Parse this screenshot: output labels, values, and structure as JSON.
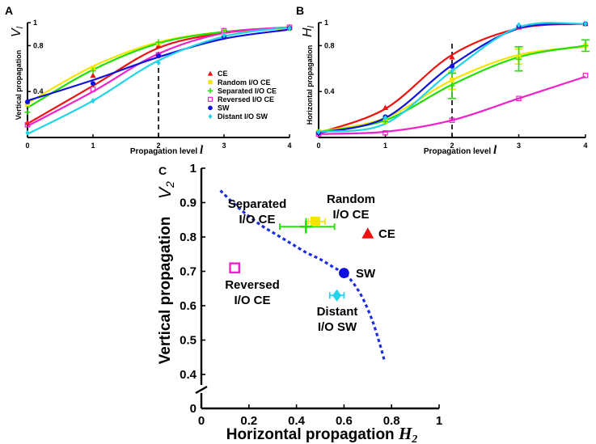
{
  "colors": {
    "CE": "#ee1111",
    "Random I/O CE": "#f2e600",
    "Separated I/O CE": "#22dd00",
    "Reversed I/O CE": "#ee22cc",
    "SW": "#1111dd",
    "Distant I/O SW": "#22d4e8",
    "axis": "#000000",
    "guide": "#000000",
    "trend": "#1a2ee0"
  },
  "chart_data": [
    {
      "panel": "A",
      "type": "line",
      "xlabel": "Propagation level",
      "xvar": "l",
      "ylabel": "Vertical propagation",
      "yvar": "V",
      "ysub": "l",
      "xlim": [
        0,
        4
      ],
      "ylim": [
        0,
        1
      ],
      "xticks": [
        "0",
        "1",
        "2",
        "3",
        "4"
      ],
      "yticks": [
        "0.4",
        "0.8",
        "1"
      ],
      "ytick_values": [
        0.4,
        0.8,
        1
      ],
      "guide_x": 2,
      "x": [
        0,
        1,
        2,
        3,
        4
      ],
      "legend_position": "right-middle",
      "series": [
        {
          "name": "CE",
          "marker": "triangle",
          "values": [
            0.13,
            0.54,
            0.8,
            0.92,
            0.96
          ],
          "curve": [
            0.12,
            0.45,
            0.78,
            0.91,
            0.96
          ]
        },
        {
          "name": "Random I/O CE",
          "marker": "square",
          "values": [
            0.29,
            0.6,
            0.82,
            0.92,
            0.95
          ],
          "curve": [
            0.3,
            0.62,
            0.83,
            0.92,
            0.95
          ]
        },
        {
          "name": "Separated I/O CE",
          "marker": "plus",
          "values": [
            0.22,
            0.58,
            0.83,
            0.93,
            0.96
          ],
          "curve": [
            0.26,
            0.59,
            0.82,
            0.92,
            0.96
          ]
        },
        {
          "name": "Reversed I/O CE",
          "marker": "open-square",
          "values": [
            0.11,
            0.42,
            0.72,
            0.93,
            0.96
          ],
          "curve": [
            0.1,
            0.4,
            0.73,
            0.91,
            0.96
          ]
        },
        {
          "name": "SW",
          "marker": "circle",
          "values": [
            0.31,
            0.47,
            0.71,
            0.88,
            0.95
          ],
          "curve": [
            0.32,
            0.5,
            0.7,
            0.86,
            0.94
          ]
        },
        {
          "name": "Distant I/O SW",
          "marker": "diamond",
          "values": [
            0.04,
            0.32,
            0.65,
            0.89,
            0.95
          ],
          "curve": [
            0.03,
            0.32,
            0.67,
            0.88,
            0.96
          ]
        }
      ]
    },
    {
      "panel": "B",
      "type": "line",
      "xlabel": "Propagation level",
      "xvar": "l",
      "ylabel": "Horizontal propagation",
      "yvar": "H",
      "ysub": "l",
      "xlim": [
        0,
        4
      ],
      "ylim": [
        0,
        1
      ],
      "xticks": [
        "0",
        "1",
        "2",
        "3",
        "4"
      ],
      "yticks": [
        "0.4",
        "0.8",
        "1"
      ],
      "ytick_values": [
        0.4,
        0.8,
        1
      ],
      "guide_x": 2,
      "x": [
        0,
        1,
        2,
        3,
        4
      ],
      "series": [
        {
          "name": "CE",
          "marker": "triangle",
          "values": [
            0.04,
            0.26,
            0.7,
            0.96,
            0.99
          ],
          "curve": [
            0.04,
            0.25,
            0.72,
            0.95,
            0.99
          ]
        },
        {
          "name": "Random I/O CE",
          "marker": "square",
          "values": [
            0.05,
            0.14,
            0.5,
            0.7,
            0.8
          ],
          "curve": [
            0.05,
            0.17,
            0.5,
            0.72,
            0.79
          ]
        },
        {
          "name": "Separated I/O CE",
          "marker": "plus",
          "values": [
            0.05,
            0.14,
            0.45,
            0.68,
            0.8
          ],
          "curve": [
            0.05,
            0.15,
            0.46,
            0.7,
            0.8
          ]
        },
        {
          "name": "Reversed I/O CE",
          "marker": "open-square",
          "values": [
            0.03,
            0.04,
            0.15,
            0.34,
            0.54
          ],
          "curve": [
            0.03,
            0.05,
            0.15,
            0.34,
            0.53
          ]
        },
        {
          "name": "SW",
          "marker": "circle",
          "values": [
            0.04,
            0.18,
            0.62,
            0.97,
            0.99
          ],
          "curve": [
            0.04,
            0.17,
            0.63,
            0.95,
            0.99
          ]
        },
        {
          "name": "Distant I/O SW",
          "marker": "diamond",
          "values": [
            0.05,
            0.17,
            0.58,
            0.98,
            0.99
          ],
          "curve": [
            0.05,
            0.12,
            0.58,
            0.96,
            0.99
          ]
        }
      ],
      "error_bars": [
        {
          "series": "Random I/O CE",
          "x": 2,
          "low": 0.42,
          "high": 0.58
        },
        {
          "series": "Random I/O CE",
          "x": 3,
          "low": 0.64,
          "high": 0.77
        },
        {
          "series": "Separated I/O CE",
          "x": 2,
          "low": 0.34,
          "high": 0.56
        },
        {
          "series": "Separated I/O CE",
          "x": 3,
          "low": 0.58,
          "high": 0.79
        },
        {
          "series": "Separated I/O CE",
          "x": 4,
          "low": 0.75,
          "high": 0.85
        }
      ]
    },
    {
      "panel": "C",
      "type": "scatter",
      "xlabel": "Horizontal propagation",
      "xvar": "H",
      "xsub": "2",
      "ylabel": "Vertical propagation",
      "yvar": "V",
      "ysub": "2",
      "xlim": [
        0,
        1
      ],
      "ylim": [
        0.4,
        1
      ],
      "axis_break": true,
      "xticks": [
        "0",
        "0.2",
        "0.4",
        "0.6",
        "0.8",
        "1"
      ],
      "xtick_values": [
        0,
        0.2,
        0.4,
        0.6,
        0.8,
        1
      ],
      "yticks": [
        "0.4",
        "0.5",
        "0.6",
        "0.7",
        "0.8",
        "0.9",
        "1"
      ],
      "ytick_values": [
        0.4,
        0.5,
        0.6,
        0.7,
        0.8,
        0.9,
        1
      ],
      "yzero_label": "0",
      "points": [
        {
          "name": "CE",
          "marker": "triangle",
          "x": 0.7,
          "y": 0.81,
          "label": [
            "CE"
          ]
        },
        {
          "name": "Random I/O CE",
          "marker": "square",
          "x": 0.48,
          "y": 0.845,
          "xerr": [
            0.45,
            0.52
          ],
          "label": [
            "Random",
            "I/O CE"
          ]
        },
        {
          "name": "Separated I/O CE",
          "marker": "plus",
          "x": 0.44,
          "y": 0.83,
          "xerr": [
            0.33,
            0.56
          ],
          "yerr": [
            0.81,
            0.855
          ],
          "label": [
            "Separated",
            "I/O CE"
          ]
        },
        {
          "name": "Reversed I/O CE",
          "marker": "open-square",
          "x": 0.14,
          "y": 0.71,
          "label": [
            "Reversed",
            "I/O CE"
          ]
        },
        {
          "name": "SW",
          "marker": "circle",
          "x": 0.6,
          "y": 0.695,
          "label": [
            "SW"
          ]
        },
        {
          "name": "Distant I/O SW",
          "marker": "diamond",
          "x": 0.57,
          "y": 0.63,
          "xerr": [
            0.54,
            0.6
          ],
          "label": [
            "Distant",
            "I/O SW"
          ]
        }
      ],
      "trend": {
        "x": [
          0.08,
          0.14,
          0.2,
          0.26,
          0.32,
          0.38,
          0.44,
          0.5,
          0.56,
          0.6,
          0.64,
          0.68,
          0.72,
          0.75,
          0.77
        ],
        "y": [
          0.935,
          0.895,
          0.86,
          0.83,
          0.805,
          0.78,
          0.755,
          0.735,
          0.71,
          0.695,
          0.665,
          0.62,
          0.555,
          0.49,
          0.44
        ]
      }
    }
  ]
}
